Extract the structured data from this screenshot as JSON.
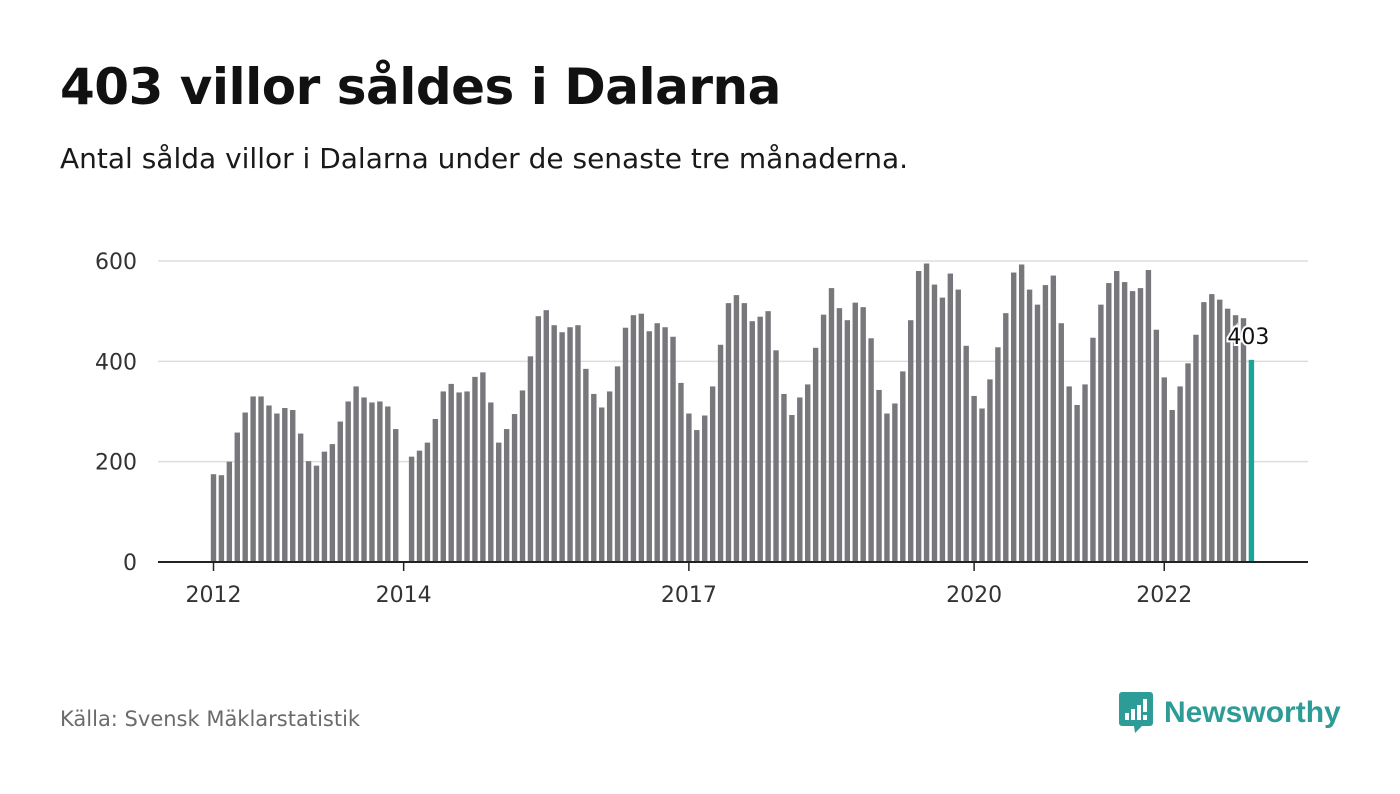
{
  "title": "403 villor såldes i Dalarna",
  "subtitle": "Antal sålda villor i Dalarna under de senaste tre månaderna.",
  "source": "Källa: Svensk Mäklarstatistik",
  "brand": {
    "name": "Newsworthy",
    "icon": "newsworthy-logo-icon"
  },
  "colors": {
    "bar": "#78777c",
    "highlight": "#1ea39a",
    "grid": "#dddddd",
    "axis": "#222222",
    "brand": "#2e9c96"
  },
  "chart_data": {
    "type": "bar",
    "ylim": [
      0,
      600
    ],
    "yticks": [
      0,
      200,
      400,
      600
    ],
    "grid": true,
    "xtick_labels": [
      {
        "label": "2012",
        "index": 0
      },
      {
        "label": "2014",
        "index": 24
      },
      {
        "label": "2017",
        "index": 60
      },
      {
        "label": "2020",
        "index": 96
      },
      {
        "label": "2022",
        "index": 120
      }
    ],
    "highlight_label": "403",
    "values": [
      175,
      173,
      200,
      258,
      298,
      330,
      330,
      312,
      296,
      307,
      303,
      256,
      201,
      192,
      220,
      235,
      280,
      320,
      350,
      328,
      318,
      320,
      310,
      265,
      null,
      210,
      222,
      238,
      285,
      340,
      355,
      338,
      340,
      369,
      378,
      318,
      238,
      265,
      295,
      342,
      410,
      490,
      502,
      472,
      458,
      468,
      472,
      385,
      335,
      308,
      340,
      390,
      467,
      492,
      495,
      460,
      476,
      468,
      449,
      357,
      296,
      263,
      292,
      350,
      433,
      516,
      532,
      516,
      480,
      489,
      500,
      422,
      335,
      293,
      328,
      354,
      427,
      493,
      546,
      506,
      482,
      517,
      508,
      446,
      343,
      296,
      316,
      380,
      482,
      580,
      595,
      553,
      527,
      575,
      543,
      431,
      331,
      306,
      364,
      428,
      496,
      577,
      593,
      543,
      513,
      552,
      571,
      476,
      350,
      313,
      354,
      447,
      513,
      556,
      580,
      558,
      540,
      546,
      582,
      463,
      368,
      303,
      350,
      396,
      453,
      518,
      534,
      523,
      505,
      492,
      486,
      403
    ]
  }
}
